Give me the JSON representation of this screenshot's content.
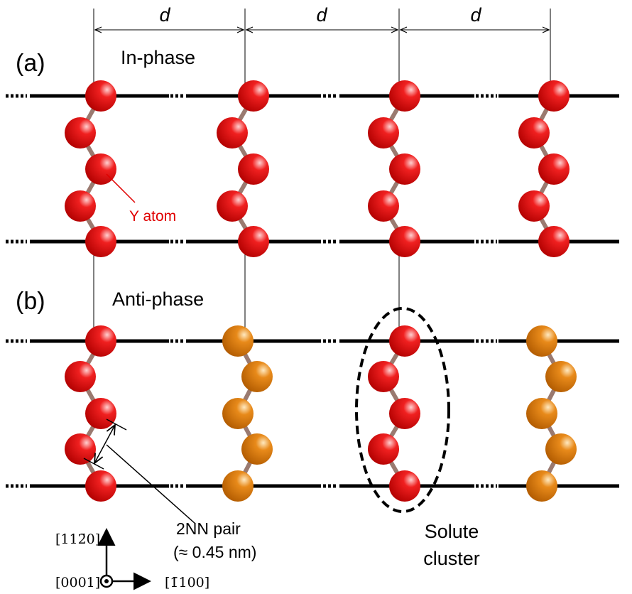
{
  "dimension_labels": [
    "d",
    "d",
    "d"
  ],
  "panel_a": {
    "label": "(a)",
    "title": "In-phase",
    "atom_label": "Y atom"
  },
  "panel_b": {
    "label": "(b)",
    "title": "Anti-phase",
    "pair_label": [
      "2NN pair",
      "(≈ 0.45 nm)"
    ],
    "cluster_label": [
      "Solute",
      "cluster"
    ]
  },
  "axes": {
    "up": "[112̄0]",
    "out": "[0001]",
    "right": "[1̄100]"
  }
}
